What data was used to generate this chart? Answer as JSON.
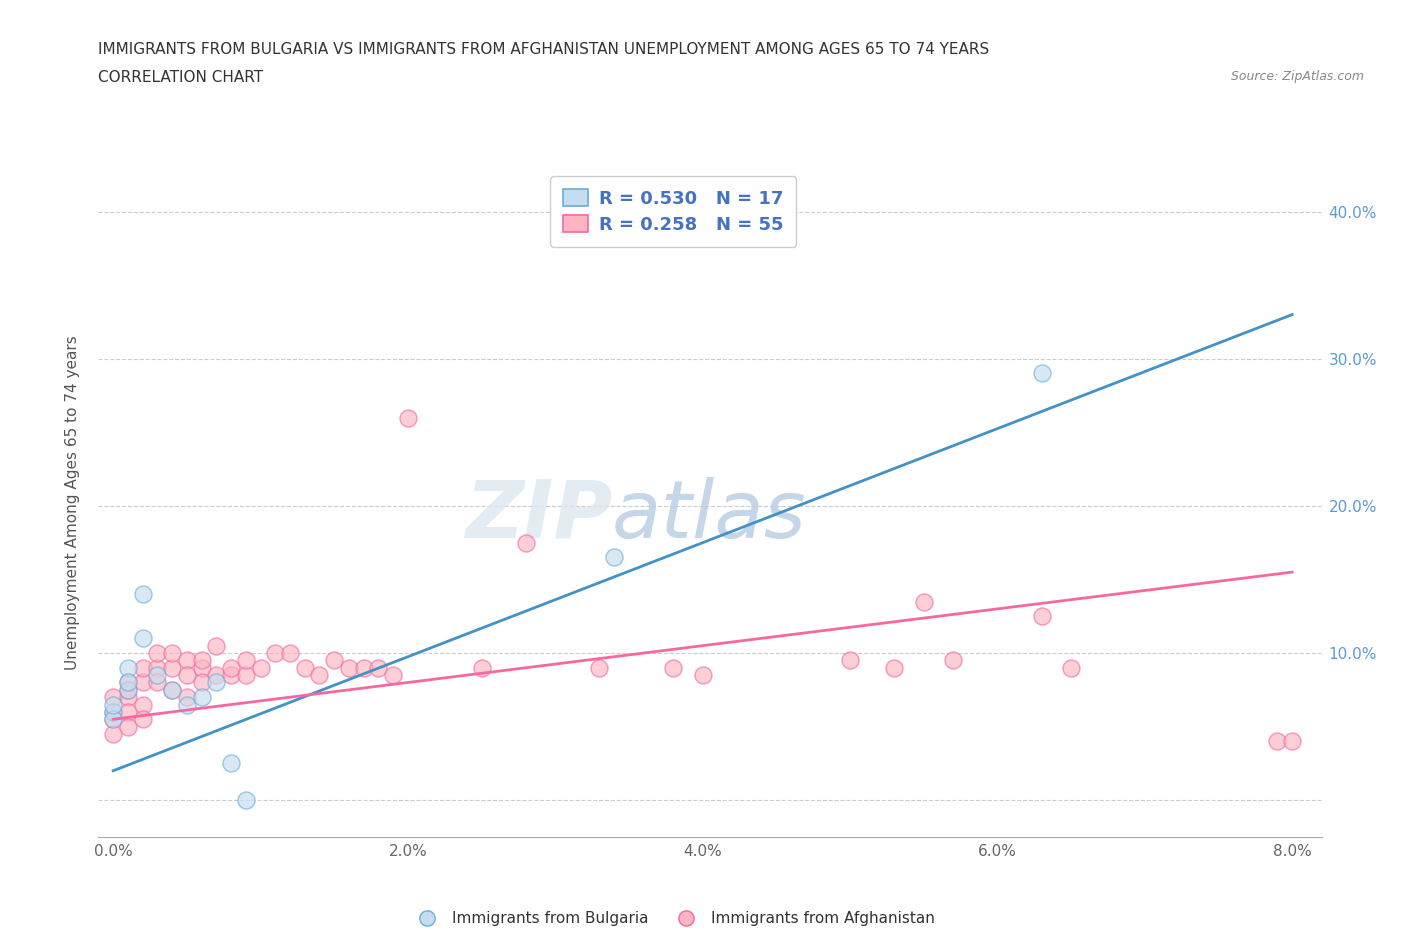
{
  "title_line1": "IMMIGRANTS FROM BULGARIA VS IMMIGRANTS FROM AFGHANISTAN UNEMPLOYMENT AMONG AGES 65 TO 74 YEARS",
  "title_line2": "CORRELATION CHART",
  "source": "Source: ZipAtlas.com",
  "ylabel": "Unemployment Among Ages 65 to 74 years",
  "xlim": [
    -0.001,
    0.082
  ],
  "ylim": [
    -0.025,
    0.43
  ],
  "xticks": [
    0.0,
    0.02,
    0.04,
    0.06,
    0.08
  ],
  "xticklabels": [
    "0.0%",
    "2.0%",
    "4.0%",
    "6.0%",
    "8.0%"
  ],
  "yticks": [
    0.0,
    0.1,
    0.2,
    0.3,
    0.4
  ],
  "right_yticklabels": [
    "",
    "10.0%",
    "20.0%",
    "30.0%",
    "40.0%"
  ],
  "watermark_zip": "ZIP",
  "watermark_atlas": "atlas",
  "legend_r_bulgaria": "R = 0.530",
  "legend_n_bulgaria": "N = 17",
  "legend_r_afghanistan": "R = 0.258",
  "legend_n_afghanistan": "N = 55",
  "bulgaria_fill_color": "#c5ddf0",
  "bulgaria_edge_color": "#6baed6",
  "afghanistan_fill_color": "#fbb4c0",
  "afghanistan_edge_color": "#f768a1",
  "bulgaria_line_color": "#4292c6",
  "afghanistan_line_color": "#f768a1",
  "bulgaria_trend_x": [
    0.0,
    0.08
  ],
  "bulgaria_trend_y": [
    0.02,
    0.33
  ],
  "afghanistan_trend_x": [
    0.0,
    0.08
  ],
  "afghanistan_trend_y": [
    0.055,
    0.155
  ],
  "bulgaria_x": [
    0.0,
    0.0,
    0.0,
    0.001,
    0.001,
    0.001,
    0.002,
    0.002,
    0.003,
    0.004,
    0.005,
    0.006,
    0.007,
    0.008,
    0.009,
    0.034,
    0.063
  ],
  "bulgaria_y": [
    0.06,
    0.055,
    0.065,
    0.075,
    0.09,
    0.08,
    0.11,
    0.14,
    0.085,
    0.075,
    0.065,
    0.07,
    0.08,
    0.025,
    0.0,
    0.165,
    0.29
  ],
  "afghanistan_x": [
    0.0,
    0.0,
    0.0,
    0.0,
    0.001,
    0.001,
    0.001,
    0.001,
    0.001,
    0.002,
    0.002,
    0.002,
    0.002,
    0.003,
    0.003,
    0.003,
    0.004,
    0.004,
    0.004,
    0.005,
    0.005,
    0.005,
    0.006,
    0.006,
    0.006,
    0.007,
    0.007,
    0.008,
    0.008,
    0.009,
    0.009,
    0.01,
    0.011,
    0.012,
    0.013,
    0.014,
    0.015,
    0.016,
    0.017,
    0.018,
    0.019,
    0.02,
    0.025,
    0.028,
    0.033,
    0.038,
    0.04,
    0.05,
    0.053,
    0.055,
    0.057,
    0.063,
    0.065,
    0.079,
    0.08
  ],
  "afghanistan_y": [
    0.06,
    0.07,
    0.055,
    0.045,
    0.07,
    0.08,
    0.06,
    0.05,
    0.075,
    0.08,
    0.065,
    0.055,
    0.09,
    0.09,
    0.1,
    0.08,
    0.09,
    0.075,
    0.1,
    0.095,
    0.085,
    0.07,
    0.09,
    0.08,
    0.095,
    0.085,
    0.105,
    0.085,
    0.09,
    0.085,
    0.095,
    0.09,
    0.1,
    0.1,
    0.09,
    0.085,
    0.095,
    0.09,
    0.09,
    0.09,
    0.085,
    0.26,
    0.09,
    0.175,
    0.09,
    0.09,
    0.085,
    0.095,
    0.09,
    0.135,
    0.095,
    0.125,
    0.09,
    0.04,
    0.04
  ]
}
